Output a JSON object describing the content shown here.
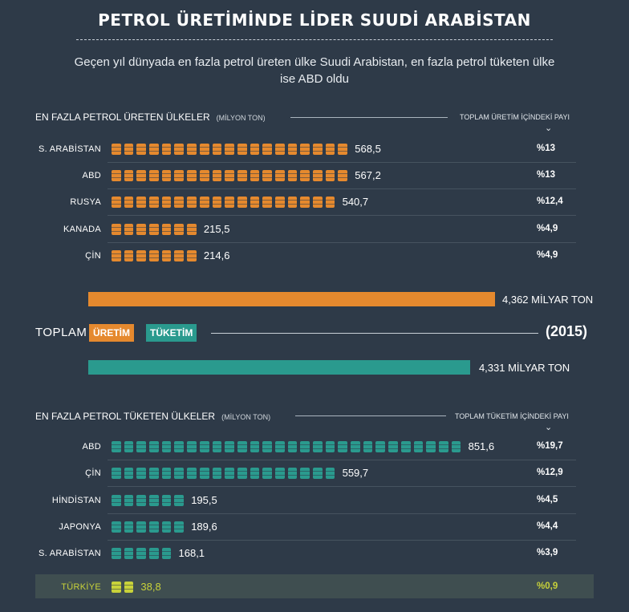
{
  "title": "PETROL ÜRETİMİNDE LİDER SUUDİ ARABİSTAN",
  "subtitle": "Geçen yıl dünyada en fazla petrol üreten ülke Suudi Arabistan, en fazla petrol tüketen ülke ise ABD oldu",
  "production": {
    "heading": "EN FAZLA PETROL ÜRETEN ÜLKELER",
    "unit": "(MİLYON TON)",
    "share_heading": "TOPLAM ÜRETİM İÇİNDEKİ PAYI"
  },
  "consumption": {
    "heading": "EN FAZLA PETROL TÜKETEN ÜLKELER",
    "unit": "(MİLYON TON)",
    "share_heading": "TOPLAM TÜKETİM İÇİNDEKİ PAYI"
  },
  "totals": {
    "label": "TOPLAM",
    "production_tag": "ÜRETİM",
    "consumption_tag": "TÜKETİM",
    "year": "(2015)",
    "production_text": "4,362 MİLYAR TON",
    "consumption_text": "4,331 MİLYAR TON"
  },
  "colors": {
    "production": "#e5892e",
    "consumption": "#2a9a8e",
    "turkey": "#c8d23a",
    "background": "#2e3a48"
  },
  "chart_data": [
    {
      "type": "bar",
      "title": "EN FAZLA PETROL ÜRETEN ÜLKELER",
      "unit": "MİLYON TON",
      "categories": [
        "S. ARABİSTAN",
        "ABD",
        "RUSYA",
        "KANADA",
        "ÇİN"
      ],
      "values": [
        568.5,
        567.2,
        540.7,
        215.5,
        214.6
      ],
      "value_labels": [
        "568,5",
        "567,2",
        "540,7",
        "215,5",
        "214,6"
      ],
      "icon_counts": [
        19,
        19,
        18,
        7,
        7
      ],
      "shares": [
        "%13",
        "%13",
        "%12,4",
        "%4,9",
        "%4,9"
      ]
    },
    {
      "type": "bar",
      "title": "EN FAZLA PETROL TÜKETEN ÜLKELER",
      "unit": "MİLYON TON",
      "categories": [
        "ABD",
        "ÇİN",
        "HİNDİSTAN",
        "JAPONYA",
        "S. ARABİSTAN",
        "TÜRKİYE"
      ],
      "values": [
        851.6,
        559.7,
        195.5,
        189.6,
        168.1,
        38.8
      ],
      "value_labels": [
        "851,6",
        "559,7",
        "195,5",
        "189,6",
        "168,1",
        "38,8"
      ],
      "icon_counts": [
        28,
        18,
        6,
        6,
        5,
        2
      ],
      "shares": [
        "%19,7",
        "%12,9",
        "%4,5",
        "%4,4",
        "%3,9",
        "%0,9"
      ]
    },
    {
      "type": "bar",
      "title": "TOPLAM (2015)",
      "unit": "MİLYAR TON",
      "categories": [
        "ÜRETİM",
        "TÜKETİM"
      ],
      "values": [
        4.362,
        4.331
      ]
    }
  ]
}
